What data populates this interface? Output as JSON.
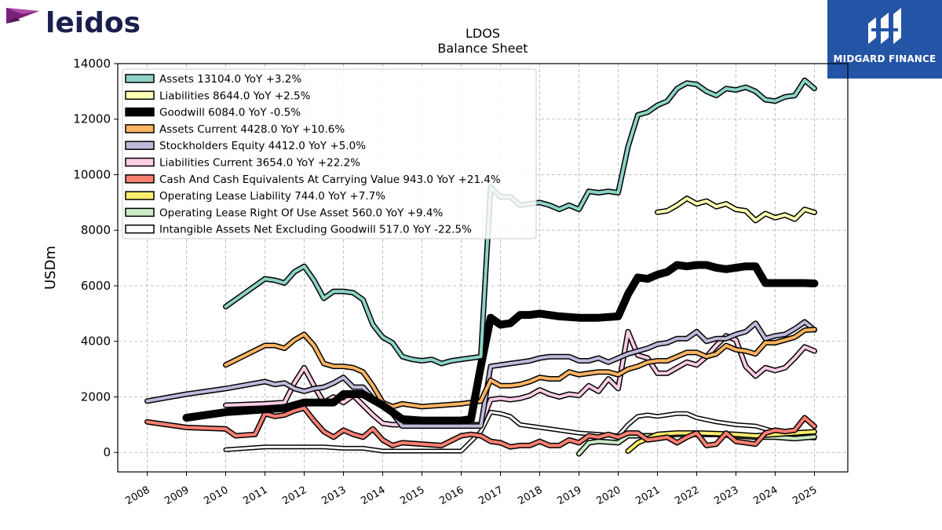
{
  "brand": {
    "name": "leidos"
  },
  "badge": {
    "name": "MIDGARD FINANCE"
  },
  "chart_data": {
    "type": "line",
    "title": "LDOS",
    "subtitle": "Balance  Sheet",
    "ylabel": "USDm",
    "xlabel": "",
    "xlim": [
      2007.25,
      2025.85
    ],
    "ylim": [
      -700,
      14000
    ],
    "yticks": [
      0,
      2000,
      4000,
      6000,
      8000,
      10000,
      12000,
      14000
    ],
    "xticks": [
      "2008",
      "2009",
      "2010",
      "2011",
      "2012",
      "2013",
      "2014",
      "2015",
      "2016",
      "2017",
      "2018",
      "2019",
      "2020",
      "2021",
      "2022",
      "2023",
      "2024",
      "2025"
    ],
    "grid": true,
    "legend_position": "top-left",
    "series": [
      {
        "name": "Assets  13104.0 YoY +3.2%",
        "color": "#8dd3c7",
        "width": 4,
        "x": [
          2010.0,
          2010.5,
          2011.0,
          2011.25,
          2011.5,
          2011.75,
          2012.0,
          2012.25,
          2012.5,
          2012.75,
          2013.0,
          2013.25,
          2013.5,
          2013.75,
          2014.0,
          2014.25,
          2014.5,
          2014.75,
          2015.0,
          2015.25,
          2015.5,
          2015.75,
          2016.0,
          2016.25,
          2016.5,
          2016.75,
          2017.0,
          2017.25,
          2017.5,
          2017.75,
          2018.0,
          2018.25,
          2018.5,
          2018.75,
          2019.0,
          2019.25,
          2019.5,
          2019.75,
          2020.0,
          2020.25,
          2020.5,
          2020.75,
          2021.0,
          2021.25,
          2021.5,
          2021.75,
          2022.0,
          2022.25,
          2022.5,
          2022.75,
          2023.0,
          2023.25,
          2023.5,
          2023.75,
          2024.0,
          2024.25,
          2024.5,
          2024.75,
          2025.0
        ],
        "y": [
          5250,
          5750,
          6250,
          6200,
          6100,
          6500,
          6700,
          6200,
          5550,
          5800,
          5800,
          5750,
          5500,
          4600,
          4150,
          3950,
          3450,
          3350,
          3300,
          3350,
          3200,
          3300,
          3350,
          3400,
          3450,
          9550,
          9200,
          9200,
          8900,
          8950,
          9000,
          8900,
          8750,
          8900,
          8750,
          9400,
          9350,
          9400,
          9350,
          11000,
          12150,
          12250,
          12500,
          12650,
          13100,
          13300,
          13250,
          13000,
          12850,
          13100,
          13050,
          13150,
          13000,
          12700,
          12650,
          12800,
          12850,
          13400,
          13104
        ]
      },
      {
        "name": "Liabilities  8644.0 YoY +2.5%",
        "color": "#ffffb3",
        "width": 4,
        "x": [
          2021.0,
          2021.25,
          2021.5,
          2021.75,
          2022.0,
          2022.25,
          2022.5,
          2022.75,
          2023.0,
          2023.25,
          2023.5,
          2023.75,
          2024.0,
          2024.25,
          2024.5,
          2024.75,
          2025.0
        ],
        "y": [
          8650,
          8700,
          8900,
          9150,
          8950,
          9050,
          8850,
          8950,
          8750,
          8700,
          8350,
          8600,
          8450,
          8550,
          8400,
          8750,
          8644
        ]
      },
      {
        "name": "Goodwill  6084.0 YoY -0.5%",
        "color": "#000000",
        "width": 7,
        "x": [
          2009.0,
          2010.0,
          2011.0,
          2011.5,
          2012.0,
          2012.5,
          2012.75,
          2013.0,
          2013.5,
          2014.0,
          2014.5,
          2015.0,
          2015.5,
          2016.0,
          2016.25,
          2016.5,
          2016.75,
          2017.0,
          2017.25,
          2017.5,
          2017.75,
          2018.0,
          2018.5,
          2019.0,
          2019.5,
          2020.0,
          2020.25,
          2020.5,
          2020.75,
          2021.0,
          2021.25,
          2021.5,
          2021.75,
          2022.0,
          2022.25,
          2022.5,
          2022.75,
          2023.0,
          2023.25,
          2023.5,
          2023.75,
          2024.0,
          2024.5,
          2024.75,
          2025.0
        ],
        "y": [
          1250,
          1450,
          1550,
          1600,
          1800,
          1800,
          1800,
          2100,
          2100,
          1700,
          1200,
          1150,
          1150,
          1150,
          1200,
          3100,
          4850,
          4600,
          4650,
          4950,
          4950,
          5000,
          4900,
          4850,
          4850,
          4900,
          5700,
          6300,
          6250,
          6400,
          6500,
          6750,
          6700,
          6750,
          6750,
          6650,
          6600,
          6650,
          6700,
          6700,
          6100,
          6100,
          6100,
          6100,
          6084
        ]
      },
      {
        "name": "Assets Current  4428.0 YoY +10.6%",
        "color": "#fdb462",
        "width": 4,
        "x": [
          2010.0,
          2010.5,
          2011.0,
          2011.25,
          2011.5,
          2011.75,
          2012.0,
          2012.25,
          2012.5,
          2012.75,
          2013.0,
          2013.25,
          2013.5,
          2013.75,
          2014.0,
          2014.25,
          2014.5,
          2015.0,
          2015.5,
          2016.0,
          2016.5,
          2016.75,
          2017.0,
          2017.25,
          2017.5,
          2017.75,
          2018.0,
          2018.25,
          2018.5,
          2018.75,
          2019.0,
          2019.25,
          2019.5,
          2019.75,
          2020.0,
          2020.25,
          2020.5,
          2020.75,
          2021.0,
          2021.25,
          2021.5,
          2021.75,
          2022.0,
          2022.25,
          2022.5,
          2022.75,
          2023.0,
          2023.25,
          2023.5,
          2023.75,
          2024.0,
          2024.25,
          2024.5,
          2024.75,
          2025.0
        ],
        "y": [
          3150,
          3500,
          3850,
          3850,
          3750,
          4050,
          4250,
          3850,
          3200,
          3100,
          3100,
          3050,
          2900,
          2400,
          1800,
          1650,
          1750,
          1650,
          1700,
          1750,
          1850,
          2600,
          2400,
          2400,
          2450,
          2550,
          2700,
          2650,
          2650,
          2900,
          2800,
          2850,
          2900,
          2900,
          2800,
          3000,
          3100,
          3250,
          3300,
          3300,
          3450,
          3600,
          3600,
          3450,
          3550,
          3850,
          3700,
          3650,
          3550,
          3950,
          3950,
          4050,
          4150,
          4400,
          4428
        ]
      },
      {
        "name": "Stockholders Equity  4412.0 YoY +5.0%",
        "color": "#bebada",
        "width": 4,
        "x": [
          2008.0,
          2009.0,
          2010.0,
          2011.0,
          2011.25,
          2011.5,
          2011.75,
          2012.0,
          2012.25,
          2012.5,
          2012.75,
          2013.0,
          2013.25,
          2013.5,
          2013.75,
          2014.0,
          2014.25,
          2014.5,
          2015.0,
          2015.5,
          2016.0,
          2016.5,
          2016.75,
          2017.0,
          2017.25,
          2017.5,
          2017.75,
          2018.0,
          2018.25,
          2018.5,
          2018.75,
          2019.0,
          2019.25,
          2019.5,
          2019.75,
          2020.0,
          2020.25,
          2020.5,
          2020.75,
          2021.0,
          2021.25,
          2021.5,
          2021.75,
          2022.0,
          2022.25,
          2022.5,
          2022.75,
          2023.0,
          2023.25,
          2023.5,
          2023.75,
          2024.0,
          2024.25,
          2024.5,
          2024.75,
          2025.0
        ],
        "y": [
          1850,
          2100,
          2300,
          2550,
          2450,
          2500,
          2300,
          2200,
          2300,
          2350,
          2500,
          2700,
          2350,
          2350,
          1950,
          1650,
          1400,
          950,
          950,
          950,
          950,
          950,
          3100,
          3150,
          3200,
          3250,
          3300,
          3400,
          3450,
          3450,
          3450,
          3300,
          3300,
          3400,
          3250,
          3400,
          3550,
          3650,
          3750,
          3900,
          3950,
          4100,
          4100,
          4350,
          4000,
          4100,
          4100,
          4250,
          4350,
          4650,
          4100,
          4200,
          4250,
          4450,
          4700,
          4412
        ]
      },
      {
        "name": "Liabilities Current  3654.0 YoY +22.2%",
        "color": "#fccde5",
        "width": 4,
        "x": [
          2010.0,
          2011.0,
          2011.5,
          2011.75,
          2012.0,
          2012.25,
          2012.5,
          2012.75,
          2013.0,
          2013.25,
          2013.5,
          2013.75,
          2014.0,
          2014.25,
          2014.5,
          2015.0,
          2015.5,
          2016.0,
          2016.5,
          2016.75,
          2017.0,
          2017.25,
          2017.5,
          2017.75,
          2018.0,
          2018.25,
          2018.5,
          2018.75,
          2019.0,
          2019.25,
          2019.5,
          2019.75,
          2020.0,
          2020.25,
          2020.5,
          2020.75,
          2021.0,
          2021.25,
          2021.5,
          2021.75,
          2022.0,
          2022.25,
          2022.5,
          2022.75,
          2023.0,
          2023.25,
          2023.5,
          2023.75,
          2024.0,
          2024.25,
          2024.5,
          2024.75,
          2025.0
        ],
        "y": [
          1700,
          1750,
          1800,
          2500,
          3050,
          2400,
          1800,
          2000,
          1800,
          2050,
          1700,
          1350,
          1050,
          1000,
          1000,
          1000,
          950,
          1000,
          1000,
          1900,
          1950,
          1900,
          1950,
          2050,
          2250,
          2100,
          2000,
          2100,
          2050,
          2400,
          2200,
          2650,
          2300,
          4350,
          3500,
          3400,
          2850,
          2850,
          3050,
          3250,
          3150,
          3450,
          3850,
          4200,
          4050,
          3100,
          2750,
          3050,
          2950,
          3050,
          3400,
          3800,
          3654
        ]
      },
      {
        "name": "Cash And Cash Equivalents At Carrying Value  943.0 YoY +21.4%",
        "color": "#fb8072",
        "width": 4,
        "x": [
          2008.0,
          2009.0,
          2010.0,
          2010.25,
          2010.75,
          2011.0,
          2011.25,
          2011.5,
          2011.75,
          2012.0,
          2012.25,
          2012.5,
          2012.75,
          2013.0,
          2013.25,
          2013.5,
          2013.75,
          2014.0,
          2014.25,
          2014.5,
          2015.0,
          2015.5,
          2016.0,
          2016.25,
          2016.5,
          2016.75,
          2017.0,
          2017.25,
          2017.5,
          2017.75,
          2018.0,
          2018.25,
          2018.5,
          2018.75,
          2019.0,
          2019.25,
          2019.5,
          2019.75,
          2020.0,
          2020.25,
          2020.5,
          2020.75,
          2021.0,
          2021.25,
          2021.5,
          2021.75,
          2022.0,
          2022.25,
          2022.5,
          2022.75,
          2023.0,
          2023.25,
          2023.5,
          2023.75,
          2024.0,
          2024.25,
          2024.5,
          2024.75,
          2025.0
        ],
        "y": [
          1100,
          900,
          850,
          600,
          650,
          1400,
          1300,
          1350,
          1500,
          1600,
          1150,
          750,
          550,
          800,
          650,
          550,
          850,
          450,
          250,
          350,
          300,
          250,
          600,
          650,
          600,
          400,
          350,
          200,
          250,
          250,
          400,
          250,
          250,
          450,
          350,
          600,
          550,
          650,
          550,
          700,
          700,
          450,
          500,
          550,
          350,
          550,
          700,
          250,
          300,
          700,
          400,
          350,
          300,
          700,
          800,
          750,
          800,
          1250,
          943
        ]
      },
      {
        "name": "Operating Lease Liability  744.0 YoY +7.7%",
        "color": "#ffed6f",
        "width": 4,
        "x": [
          2020.25,
          2020.5,
          2021.0,
          2021.5,
          2022.0,
          2022.5,
          2023.0,
          2023.5,
          2024.0,
          2024.5,
          2025.0
        ],
        "y": [
          50,
          350,
          650,
          700,
          700,
          680,
          650,
          600,
          650,
          700,
          744
        ]
      },
      {
        "name": "Operating Lease Right Of Use Asset  560.0 YoY +9.4%",
        "color": "#ccebc5",
        "width": 4,
        "x": [
          2019.0,
          2019.25,
          2019.5,
          2020.0,
          2020.25,
          2020.5,
          2021.0,
          2021.5,
          2022.0,
          2022.5,
          2023.0,
          2023.5,
          2024.0,
          2024.5,
          2025.0
        ],
        "y": [
          -50,
          350,
          400,
          350,
          600,
          600,
          600,
          650,
          650,
          650,
          600,
          550,
          550,
          500,
          560
        ]
      },
      {
        "name": "Intangible Assets Net Excluding Goodwill  517.0 YoY -22.5%",
        "color": "#ffffff",
        "width": 3,
        "x": [
          2010.0,
          2011.0,
          2012.0,
          2012.5,
          2013.0,
          2013.5,
          2014.0,
          2014.5,
          2015.0,
          2015.5,
          2016.0,
          2016.5,
          2016.75,
          2017.0,
          2017.25,
          2017.5,
          2018.0,
          2018.5,
          2019.0,
          2019.5,
          2020.0,
          2020.25,
          2020.5,
          2020.75,
          2021.0,
          2021.25,
          2021.5,
          2021.75,
          2022.0,
          2022.5,
          2023.0,
          2023.5,
          2024.0,
          2024.5,
          2025.0
        ],
        "y": [
          100,
          200,
          200,
          200,
          150,
          150,
          50,
          50,
          50,
          50,
          50,
          750,
          1450,
          1400,
          1300,
          1000,
          900,
          800,
          700,
          650,
          600,
          1000,
          1300,
          1350,
          1300,
          1350,
          1400,
          1400,
          1250,
          1100,
          1000,
          950,
          750,
          600,
          517
        ]
      }
    ]
  }
}
